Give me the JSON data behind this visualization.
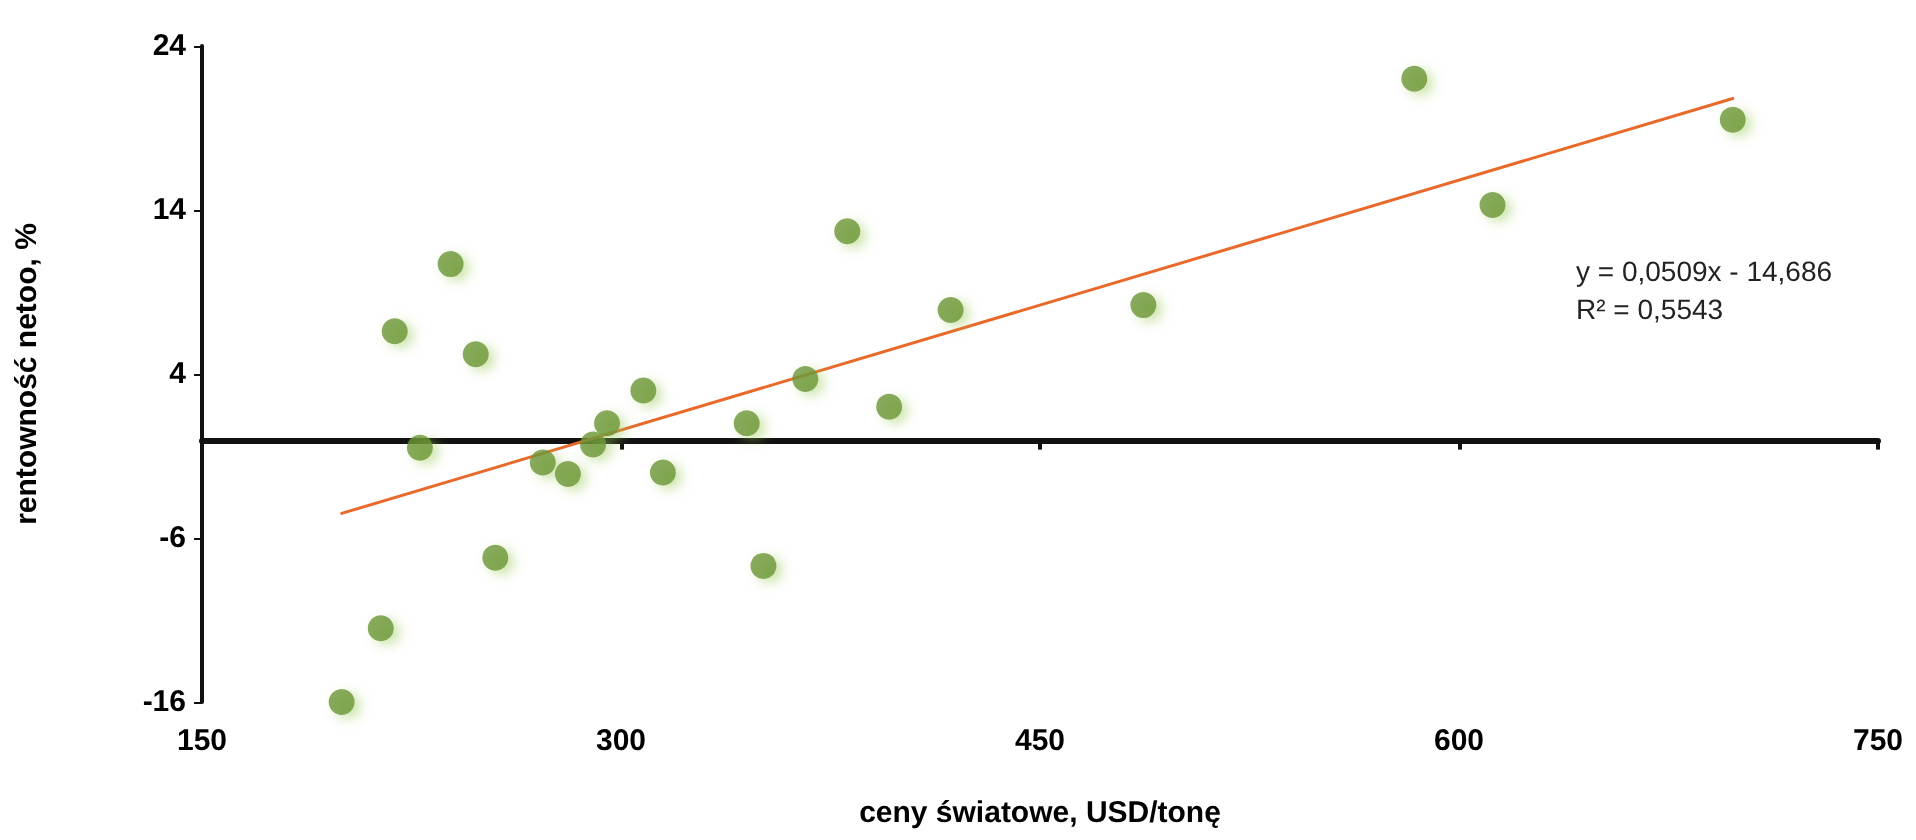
{
  "chart_data": {
    "type": "scatter",
    "xlabel": "ceny światowe, USD/tonę",
    "ylabel": "rentowność netoo, %",
    "xlim": [
      150,
      750
    ],
    "xticks": [
      150,
      300,
      450,
      600,
      750
    ],
    "ylim": [
      -16,
      24
    ],
    "yticks": [
      -16,
      -6,
      4,
      14,
      24
    ],
    "grid": false,
    "series": [
      {
        "type": "scatter",
        "marker": "circle",
        "color": "#6a9536",
        "x": [
          200,
          214,
          219,
          228,
          239,
          248,
          255,
          272,
          281,
          290,
          295,
          308,
          315,
          345,
          351,
          366,
          381,
          396,
          418,
          487,
          584,
          612,
          698
        ],
        "values": [
          -16.0,
          -11.5,
          6.6,
          -0.5,
          10.7,
          5.2,
          -7.2,
          -1.4,
          -2.1,
          -0.3,
          1.0,
          3.0,
          -2.0,
          1.0,
          -7.7,
          3.7,
          12.7,
          2.0,
          7.9,
          8.2,
          22.0,
          14.3,
          19.5
        ]
      },
      {
        "type": "line",
        "marker": "none",
        "color": "#e8692a",
        "x": [
          200,
          698
        ],
        "values": [
          -4.5,
          20.8
        ]
      }
    ],
    "annotations": [
      "y = 0,0509x - 14,686",
      "R² = 0,5543"
    ]
  }
}
